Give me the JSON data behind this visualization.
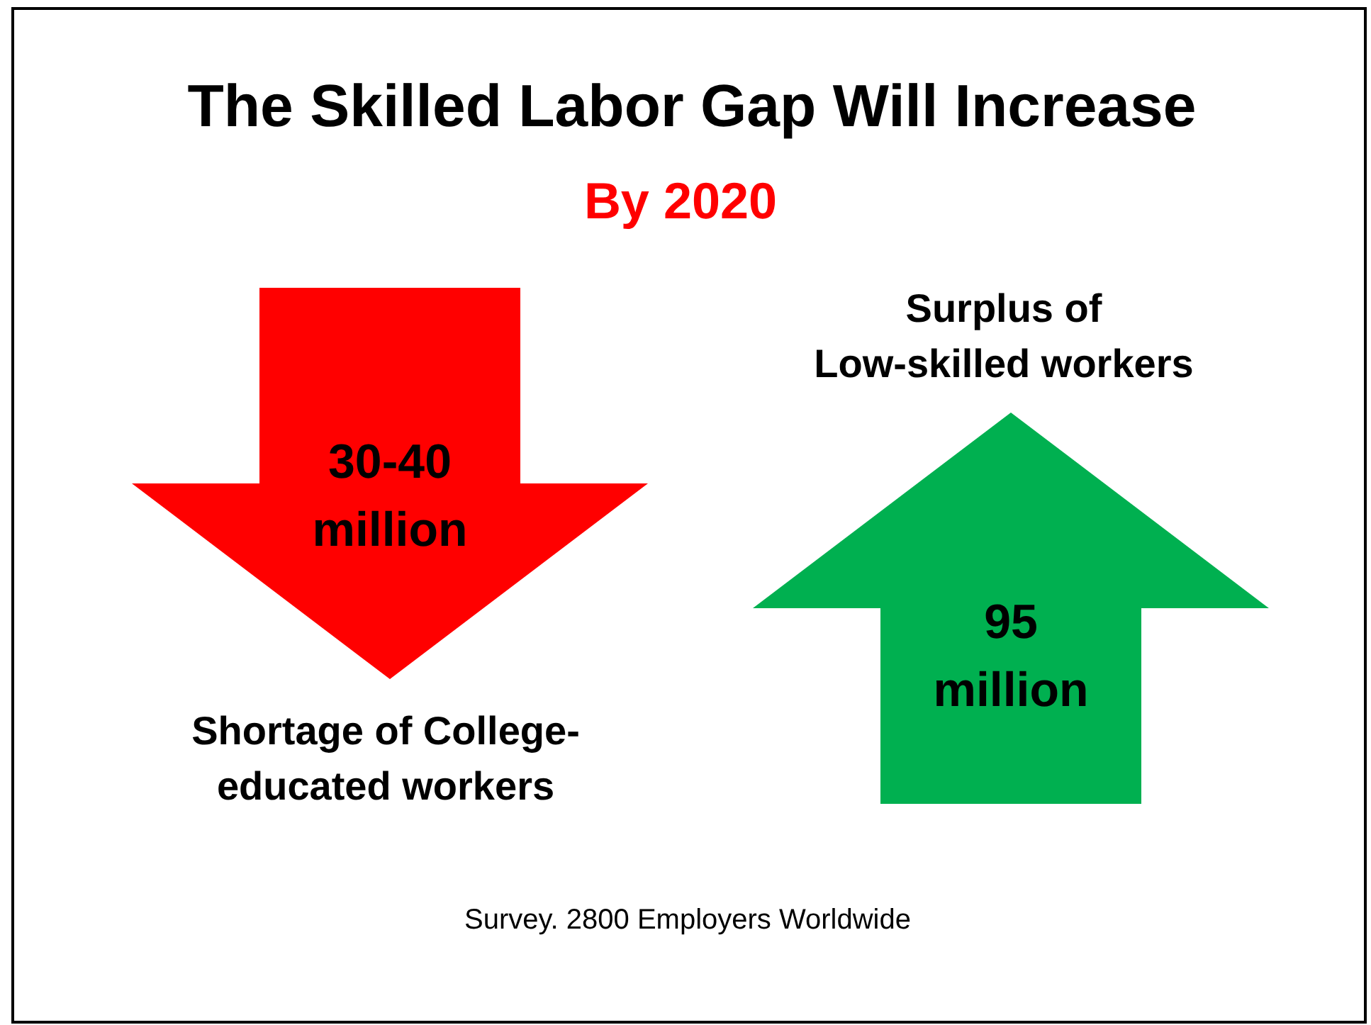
{
  "chart_data": {
    "type": "other",
    "title": "The Skilled Labor Gap Will Increase",
    "subtitle": "By 2020",
    "categories": [
      "Shortage of College-educated workers",
      "Surplus of Low-skilled workers"
    ],
    "values": [
      null,
      95
    ],
    "value_labels": [
      "30-40 million",
      "95 million"
    ],
    "colors": [
      "#ff0000",
      "#00b050"
    ],
    "annotations": [
      "Survey. 2800 Employers Worldwide"
    ]
  }
}
